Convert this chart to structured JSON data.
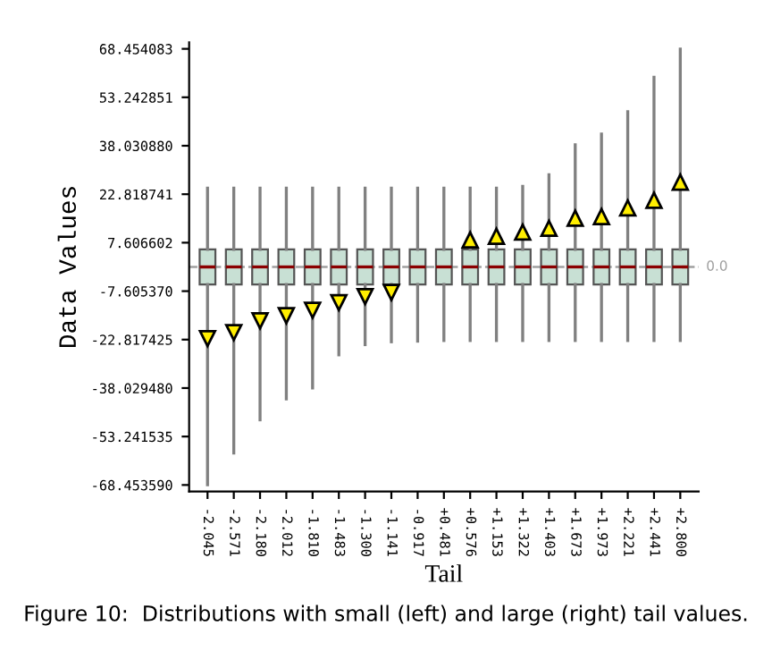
{
  "chart_data": {
    "type": "box",
    "ylabel": "Data Values",
    "xlabel": "Tail",
    "annotations": [
      "Figure 10:  Distributions with small (left) and large (right) tail values."
    ],
    "categories": [
      "-2.045",
      "-2.571",
      "-2.180",
      "-2.012",
      "-1.810",
      "-1.483",
      "-1.300",
      "-1.141",
      "-0.917",
      "+0.481",
      "+0.576",
      "+1.153",
      "+1.322",
      "+1.403",
      "+1.673",
      "+1.973",
      "+2.221",
      "+2.441",
      "+2.800"
    ],
    "color": "#c8e0d4",
    "boxes": [
      {
        "low": -68.4,
        "q1": -5.5,
        "median": 0,
        "q3": 5.5,
        "high": 24.7,
        "outliers": [
          -22.5
        ]
      },
      {
        "low": -58.4,
        "q1": -5.5,
        "median": 0,
        "q3": 5.5,
        "high": 24.7,
        "outliers": [
          -20.6
        ]
      },
      {
        "low": -48.0,
        "q1": -5.5,
        "median": 0,
        "q3": 5.5,
        "high": 24.7,
        "outliers": [
          -16.9
        ]
      },
      {
        "low": -41.4,
        "q1": -5.5,
        "median": 0,
        "q3": 5.5,
        "high": 24.7,
        "outliers": [
          -15.3
        ]
      },
      {
        "low": -38.0,
        "q1": -5.5,
        "median": 0,
        "q3": 5.5,
        "high": 24.7,
        "outliers": [
          -13.6
        ]
      },
      {
        "low": -27.6,
        "q1": -5.5,
        "median": 0,
        "q3": 5.5,
        "high": 24.7,
        "outliers": [
          -11.2
        ]
      },
      {
        "low": -24.4,
        "q1": -5.5,
        "median": 0,
        "q3": 5.5,
        "high": 24.7,
        "outliers": [
          -9.3
        ]
      },
      {
        "low": -23.5,
        "q1": -5.5,
        "median": 0,
        "q3": 5.5,
        "high": 24.7,
        "outliers": [
          -8.0
        ]
      },
      {
        "low": -23.3,
        "q1": -5.5,
        "median": 0,
        "q3": 5.5,
        "high": 24.7
      },
      {
        "low": -23.1,
        "q1": -5.5,
        "median": 0,
        "q3": 5.5,
        "high": 24.7
      },
      {
        "low": -23.1,
        "q1": -5.5,
        "median": 0,
        "q3": 5.5,
        "high": 24.7,
        "outliers": [
          8.5
        ]
      },
      {
        "low": -23.1,
        "q1": -5.5,
        "median": 0,
        "q3": 5.5,
        "high": 24.7,
        "outliers": [
          9.6
        ]
      },
      {
        "low": -23.1,
        "q1": -5.5,
        "median": 0,
        "q3": 5.5,
        "high": 25.3,
        "outliers": [
          10.9
        ]
      },
      {
        "low": -23.1,
        "q1": -5.5,
        "median": 0,
        "q3": 5.5,
        "high": 28.9,
        "outliers": [
          12.1
        ]
      },
      {
        "low": -23.1,
        "q1": -5.5,
        "median": 0,
        "q3": 5.5,
        "high": 38.3,
        "outliers": [
          15.3
        ]
      },
      {
        "low": -23.1,
        "q1": -5.5,
        "median": 0,
        "q3": 5.5,
        "high": 41.7,
        "outliers": [
          15.8
        ]
      },
      {
        "low": -23.1,
        "q1": -5.5,
        "median": 0,
        "q3": 5.5,
        "high": 48.7,
        "outliers": [
          18.5
        ]
      },
      {
        "low": -23.1,
        "q1": -5.5,
        "median": 0,
        "q3": 5.5,
        "high": 59.5,
        "outliers": [
          20.9
        ]
      },
      {
        "low": -23.1,
        "q1": -5.5,
        "median": 0,
        "q3": 5.5,
        "high": 68.4,
        "outliers": [
          26.6
        ]
      }
    ],
    "marker": "triangle",
    "ylim": [
      -70.5,
      70.5
    ],
    "yticks": [
      68.454083,
      53.242851,
      {
        "value": 38.03088,
        "label": "38.030880"
      },
      22.818741,
      7.606602,
      {
        "value": -7.60537,
        "label": "-7.605370"
      },
      -22.817425,
      {
        "value": -38.02948,
        "label": "-38.029480"
      },
      -53.241535,
      {
        "value": -68.45359,
        "label": "-68.453590"
      }
    ],
    "ref_lines": [
      {
        "axis": "y",
        "value": 0,
        "label": "0.0",
        "color": "#a0a0a0",
        "line_style": "dashed"
      }
    ],
    "grid": false,
    "legend": false
  }
}
